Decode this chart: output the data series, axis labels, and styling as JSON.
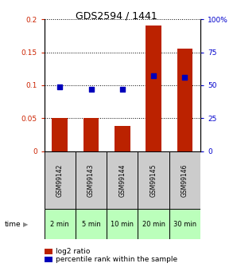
{
  "title": "GDS2594 / 1441",
  "samples": [
    "GSM99142",
    "GSM99143",
    "GSM99144",
    "GSM99145",
    "GSM99146"
  ],
  "timepoints": [
    "2 min",
    "5 min",
    "10 min",
    "20 min",
    "30 min"
  ],
  "log2_ratio": [
    0.051,
    0.051,
    0.038,
    0.19,
    0.156
  ],
  "percentile_rank": [
    0.097,
    0.094,
    0.094,
    0.115,
    0.112
  ],
  "ylim_left": [
    0,
    0.2
  ],
  "ylim_right": [
    0,
    100
  ],
  "yticks_left": [
    0,
    0.05,
    0.1,
    0.15,
    0.2
  ],
  "yticks_left_labels": [
    "0",
    "0.05",
    "0.1",
    "0.15",
    "0.2"
  ],
  "yticks_right": [
    0,
    25,
    50,
    75,
    100
  ],
  "yticks_right_labels": [
    "0",
    "25",
    "50",
    "75",
    "100%"
  ],
  "bar_color": "#bb2200",
  "dot_color": "#0000bb",
  "bar_width": 0.5,
  "background_color": "#ffffff",
  "gsm_bg": "#cccccc",
  "time_cell_color": "#bbffbb",
  "left_label_color": "#cc2200",
  "right_label_color": "#0000cc",
  "legend_bar_label": "log2 ratio",
  "legend_dot_label": "percentile rank within the sample",
  "title_fontsize": 9,
  "tick_fontsize": 6.5,
  "gsm_fontsize": 5.5,
  "time_fontsize": 6,
  "legend_fontsize": 6.5
}
